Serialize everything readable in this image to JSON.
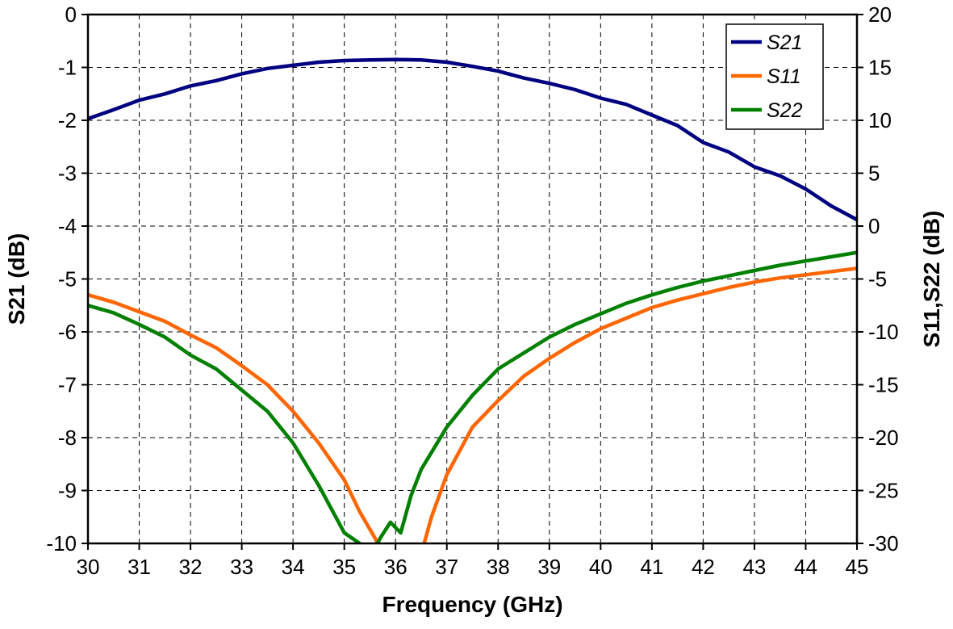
{
  "chart_data": {
    "type": "line",
    "title": "",
    "xlabel": "Frequency (GHz)",
    "ylabel_left": "S21 (dB)",
    "ylabel_right": "S11,S22 (dB)",
    "xlim": [
      30,
      45
    ],
    "ylim_left": [
      -10,
      0
    ],
    "ylim_right": [
      -30,
      20
    ],
    "x_ticks": [
      "30",
      "31",
      "32",
      "33",
      "34",
      "35",
      "36",
      "37",
      "38",
      "39",
      "40",
      "41",
      "42",
      "43",
      "44",
      "45"
    ],
    "y_left_ticks": [
      "0",
      "-1",
      "-2",
      "-3",
      "-4",
      "-5",
      "-6",
      "-7",
      "-8",
      "-9",
      "-10"
    ],
    "y_right_ticks": [
      "20",
      "15",
      "10",
      "5",
      "0",
      "-5",
      "-10",
      "-15",
      "-20",
      "-25",
      "-30"
    ],
    "grid": true,
    "legend_position": "top-right",
    "series": [
      {
        "name": "S21",
        "axis": "left",
        "color": "#000080",
        "x": [
          30,
          30.5,
          31,
          31.5,
          32,
          32.5,
          33,
          33.5,
          34,
          34.5,
          35,
          35.5,
          36,
          36.5,
          37,
          37.5,
          38,
          38.5,
          39,
          39.5,
          40,
          40.5,
          41,
          41.5,
          42,
          42.5,
          43,
          43.5,
          44,
          44.5,
          45
        ],
        "y": [
          -1.97,
          -1.8,
          -1.62,
          -1.5,
          -1.35,
          -1.25,
          -1.12,
          -1.02,
          -0.96,
          -0.9,
          -0.87,
          -0.86,
          -0.85,
          -0.86,
          -0.9,
          -0.98,
          -1.07,
          -1.2,
          -1.3,
          -1.42,
          -1.58,
          -1.7,
          -1.9,
          -2.1,
          -2.42,
          -2.6,
          -2.88,
          -3.05,
          -3.3,
          -3.62,
          -3.88
        ]
      },
      {
        "name": "S11",
        "axis": "right",
        "color": "#ff6600",
        "x": [
          30,
          30.5,
          31,
          31.5,
          32,
          32.5,
          33,
          33.5,
          34,
          34.5,
          35,
          35.3,
          35.6,
          35.75,
          36.5,
          36.7,
          37,
          37.5,
          38,
          38.5,
          39,
          39.5,
          40,
          40.5,
          41,
          41.5,
          42,
          42.5,
          43,
          43.5,
          44,
          44.5,
          45
        ],
        "y": [
          -6.5,
          -7.2,
          -8.1,
          -9.0,
          -10.3,
          -11.5,
          -13.2,
          -15.0,
          -17.5,
          -20.5,
          -24.0,
          -27.0,
          -29.5,
          -31.0,
          -31.0,
          -27.5,
          -23.5,
          -19.0,
          -16.5,
          -14.2,
          -12.5,
          -11.0,
          -9.7,
          -8.7,
          -7.7,
          -7.0,
          -6.4,
          -5.8,
          -5.3,
          -4.9,
          -4.6,
          -4.3,
          -4.0
        ]
      },
      {
        "name": "S22",
        "axis": "right",
        "color": "#008000",
        "x": [
          30,
          30.5,
          31,
          31.5,
          32,
          32.5,
          33,
          33.5,
          34,
          34.5,
          35,
          35.3,
          35.55,
          35.7,
          35.9,
          36.1,
          36.3,
          36.5,
          37,
          37.5,
          38,
          38.5,
          39,
          39.5,
          40,
          40.5,
          41,
          41.5,
          42,
          42.5,
          43,
          43.5,
          44,
          44.5,
          45
        ],
        "y": [
          -7.5,
          -8.2,
          -9.3,
          -10.5,
          -12.2,
          -13.5,
          -15.5,
          -17.5,
          -20.5,
          -24.5,
          -29.0,
          -30.0,
          -31.0,
          -29.5,
          -28.0,
          -29.0,
          -25.5,
          -23.0,
          -19.0,
          -16.0,
          -13.5,
          -12.0,
          -10.5,
          -9.3,
          -8.3,
          -7.3,
          -6.5,
          -5.8,
          -5.2,
          -4.7,
          -4.2,
          -3.7,
          -3.3,
          -2.9,
          -2.5
        ]
      }
    ]
  }
}
